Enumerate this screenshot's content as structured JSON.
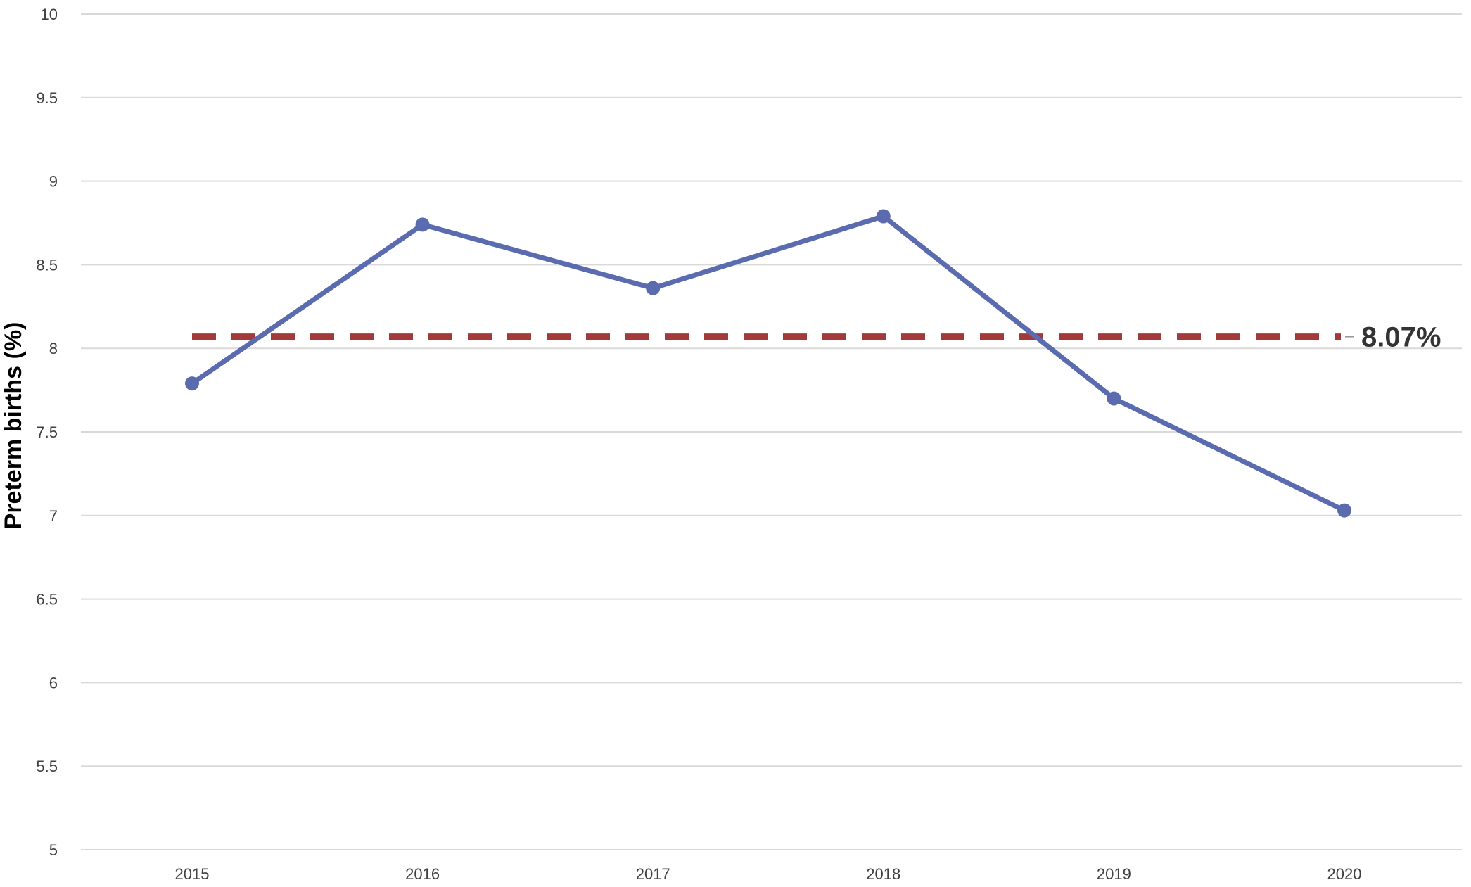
{
  "chart_data": {
    "type": "line",
    "title": "",
    "xlabel": "",
    "ylabel": "Preterm births (%)",
    "categories": [
      "2015",
      "2016",
      "2017",
      "2018",
      "2019",
      "2020"
    ],
    "series": [
      {
        "values": [
          7.79,
          8.74,
          8.36,
          8.79,
          7.7,
          7.03
        ],
        "color": "#5b6bb0",
        "marker": "circle"
      }
    ],
    "reference_line": {
      "value": 8.07,
      "label": "8.07%",
      "style": "dashed",
      "color": "#a33a3a"
    },
    "ylim": [
      5,
      10
    ],
    "yticks": [
      "5",
      "5.5",
      "6",
      "6.5",
      "7",
      "7.5",
      "8",
      "8.5",
      "9",
      "9.5",
      "10"
    ],
    "grid": "horizontal",
    "legend": "none"
  }
}
